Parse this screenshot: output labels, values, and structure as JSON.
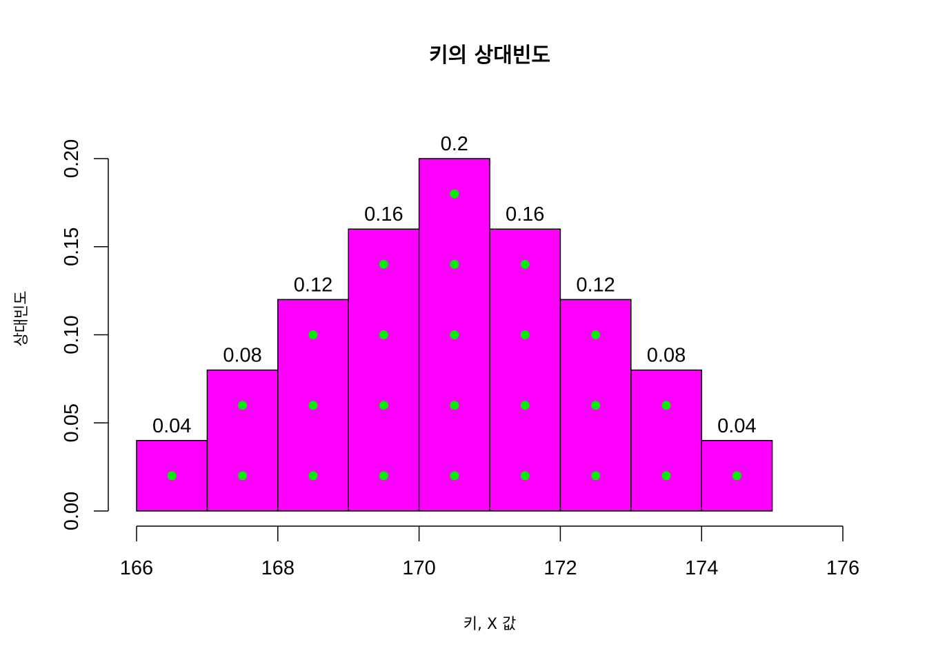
{
  "chart_data": {
    "type": "bar",
    "title": "키의 상대빈도",
    "xlabel": "키, X 값",
    "ylabel": "상대빈도",
    "x_bins": [
      [
        166,
        167
      ],
      [
        167,
        168
      ],
      [
        168,
        169
      ],
      [
        169,
        170
      ],
      [
        170,
        171
      ],
      [
        171,
        172
      ],
      [
        172,
        173
      ],
      [
        173,
        174
      ],
      [
        174,
        175
      ]
    ],
    "values": [
      0.04,
      0.08,
      0.12,
      0.16,
      0.2,
      0.16,
      0.12,
      0.08,
      0.04
    ],
    "data_labels": [
      "0.04",
      "0.08",
      "0.12",
      "0.16",
      "0.2",
      "0.16",
      "0.12",
      "0.08",
      "0.04"
    ],
    "xlim": [
      166,
      176
    ],
    "ylim": [
      0,
      0.2
    ],
    "x_ticks": [
      "166",
      "168",
      "170",
      "172",
      "174",
      "176"
    ],
    "y_ticks": [
      "0.00",
      "0.05",
      "0.10",
      "0.15",
      "0.20"
    ],
    "dot_spacing": 0.04,
    "grid": false,
    "legend": "none",
    "colors": {
      "bar_fill": "#FF00FF",
      "bar_stroke": "#000000",
      "dot": "#00EE00"
    }
  }
}
